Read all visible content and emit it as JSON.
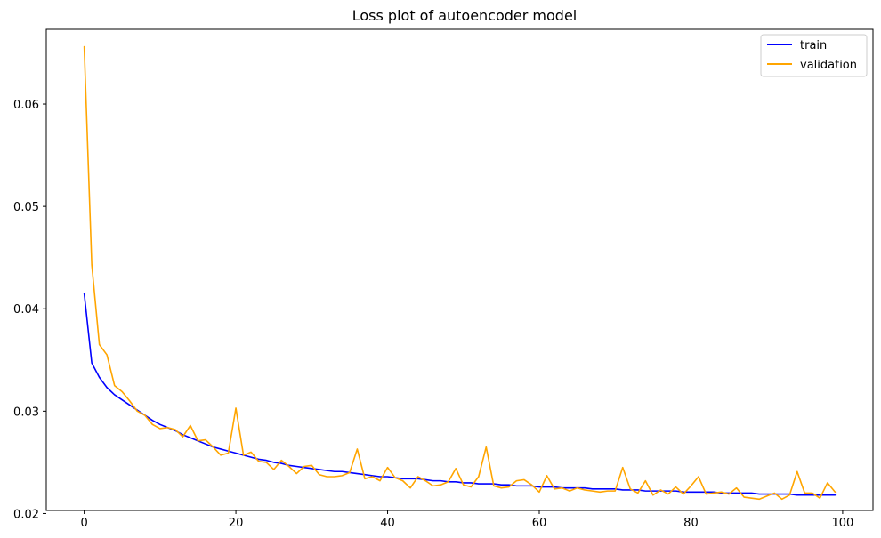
{
  "chart_data": {
    "type": "line",
    "title": "Loss plot of autoencoder model",
    "xlabel": "",
    "ylabel": "",
    "xlim": [
      -5,
      104
    ],
    "ylim": [
      0.0203,
      0.0673
    ],
    "xticks": [
      0,
      20,
      40,
      60,
      80,
      100
    ],
    "yticks": [
      0.02,
      0.03,
      0.04,
      0.05,
      0.06
    ],
    "ytick_labels": [
      "0.02",
      "0.03",
      "0.04",
      "0.05",
      "0.06"
    ],
    "grid": false,
    "legend_position": "top-right",
    "series": [
      {
        "name": "train",
        "color": "#0000ff",
        "values": [
          0.0415,
          0.0347,
          0.0333,
          0.0323,
          0.0316,
          0.0311,
          0.0306,
          0.0301,
          0.0296,
          0.0291,
          0.0287,
          0.0284,
          0.0281,
          0.0277,
          0.0274,
          0.0271,
          0.0268,
          0.0265,
          0.0263,
          0.0261,
          0.0259,
          0.0257,
          0.0255,
          0.0253,
          0.0252,
          0.025,
          0.0249,
          0.0247,
          0.0246,
          0.0245,
          0.0244,
          0.0243,
          0.0242,
          0.0241,
          0.0241,
          0.024,
          0.0239,
          0.0238,
          0.0237,
          0.0236,
          0.0236,
          0.0235,
          0.0234,
          0.0234,
          0.0234,
          0.0233,
          0.0232,
          0.0232,
          0.0231,
          0.0231,
          0.023,
          0.023,
          0.0229,
          0.0229,
          0.0229,
          0.0228,
          0.0228,
          0.0227,
          0.0227,
          0.0227,
          0.0226,
          0.0226,
          0.0226,
          0.0225,
          0.0225,
          0.0225,
          0.0225,
          0.0224,
          0.0224,
          0.0224,
          0.0224,
          0.0223,
          0.0223,
          0.0223,
          0.0222,
          0.0222,
          0.0222,
          0.0222,
          0.0222,
          0.0221,
          0.0221,
          0.0221,
          0.0221,
          0.0221,
          0.022,
          0.022,
          0.022,
          0.022,
          0.022,
          0.0219,
          0.0219,
          0.0219,
          0.0219,
          0.0219,
          0.0218,
          0.0218,
          0.0218,
          0.0218,
          0.0218,
          0.0218
        ]
      },
      {
        "name": "validation",
        "color": "#ffa500",
        "values": [
          0.0656,
          0.0443,
          0.0365,
          0.0355,
          0.0325,
          0.0319,
          0.031,
          0.03,
          0.0296,
          0.0287,
          0.0283,
          0.0284,
          0.0282,
          0.0275,
          0.0286,
          0.0271,
          0.0272,
          0.0265,
          0.0257,
          0.0259,
          0.0303,
          0.0257,
          0.026,
          0.0251,
          0.025,
          0.0243,
          0.0252,
          0.0246,
          0.0239,
          0.0246,
          0.0247,
          0.0238,
          0.0236,
          0.0236,
          0.0237,
          0.024,
          0.0263,
          0.0234,
          0.0236,
          0.0232,
          0.0245,
          0.0235,
          0.0232,
          0.0225,
          0.0236,
          0.0232,
          0.0227,
          0.0228,
          0.0231,
          0.0244,
          0.0228,
          0.0226,
          0.0236,
          0.0265,
          0.0227,
          0.0225,
          0.0226,
          0.0232,
          0.0233,
          0.0228,
          0.0221,
          0.0237,
          0.0224,
          0.0225,
          0.0222,
          0.0225,
          0.0223,
          0.0222,
          0.0221,
          0.0222,
          0.0222,
          0.0245,
          0.0224,
          0.022,
          0.0232,
          0.0218,
          0.0223,
          0.0219,
          0.0226,
          0.0219,
          0.0227,
          0.0236,
          0.0219,
          0.022,
          0.0221,
          0.0219,
          0.0225,
          0.0216,
          0.0215,
          0.0214,
          0.0217,
          0.022,
          0.0214,
          0.0218,
          0.0241,
          0.022,
          0.022,
          0.0215,
          0.023,
          0.0221
        ]
      }
    ]
  }
}
